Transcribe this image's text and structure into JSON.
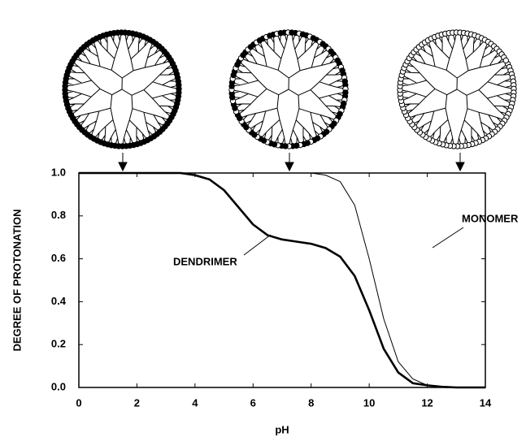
{
  "chart_data": {
    "type": "line",
    "xlabel": "pH",
    "ylabel": "DEGREE OF PROTONATION",
    "x": [
      0,
      0.5,
      1,
      1.5,
      2,
      2.5,
      3,
      3.5,
      4,
      4.5,
      5,
      5.5,
      6,
      6.5,
      7,
      7.5,
      8,
      8.5,
      9,
      9.5,
      10,
      10.5,
      11,
      11.5,
      12,
      12.5,
      13,
      13.5,
      14
    ],
    "series": [
      {
        "name": "DENDRIMER",
        "color": "#000000",
        "width": 2.6,
        "values": [
          1,
          1,
          1,
          1,
          1,
          1,
          1,
          1,
          0.99,
          0.97,
          0.92,
          0.84,
          0.76,
          0.71,
          0.69,
          0.68,
          0.67,
          0.65,
          0.61,
          0.52,
          0.36,
          0.18,
          0.07,
          0.02,
          0.01,
          0.003,
          0,
          0,
          0
        ]
      },
      {
        "name": "MONOMER",
        "color": "#000000",
        "width": 1,
        "values": [
          1,
          1,
          1,
          1,
          1,
          1,
          1,
          1,
          1,
          1,
          1,
          1,
          1,
          1,
          1,
          1,
          1,
          0.99,
          0.96,
          0.85,
          0.6,
          0.32,
          0.12,
          0.04,
          0.01,
          0.003,
          0,
          0,
          0
        ]
      }
    ],
    "xlim": [
      0,
      14
    ],
    "xticks": [
      0,
      2,
      4,
      6,
      8,
      10,
      12,
      14
    ],
    "ylim": [
      0,
      1
    ],
    "yticks": [
      {
        "value": 0,
        "label": "0.0"
      },
      0.2,
      0.4,
      0.6,
      0.8,
      {
        "value": 1,
        "label": "1.0"
      }
    ],
    "grid": false
  }
}
